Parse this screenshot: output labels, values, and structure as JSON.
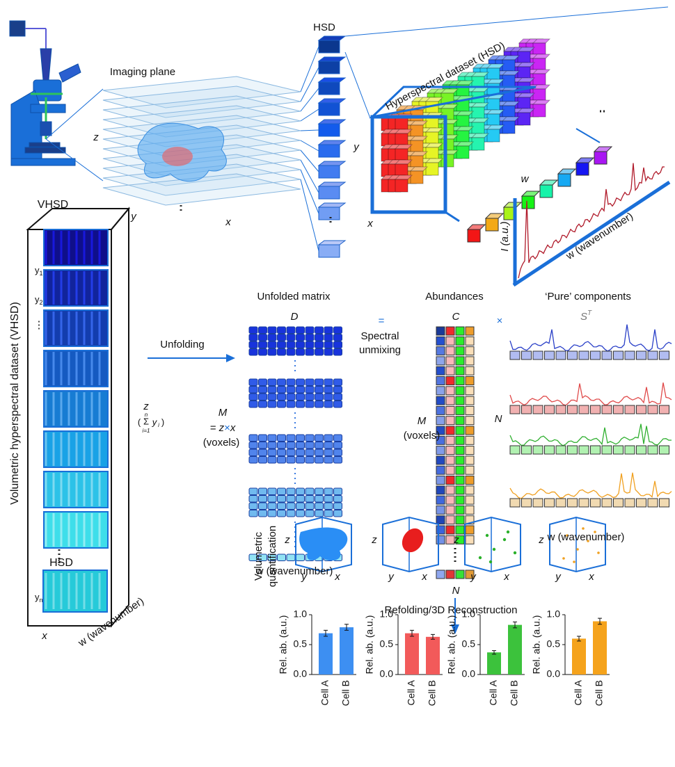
{
  "top": {
    "imaging_plane": "Imaging plane",
    "z": "z",
    "y": "y",
    "x": "x",
    "hsd": "HSD",
    "hsd_title": "Hyperspectral dataset (HSD)",
    "cube_y": "y",
    "cube_x": "x",
    "cube_w": "w",
    "intensity": "I (a.u.)",
    "wavenumber": "w (wavenumber)"
  },
  "vhsd": {
    "title": "VHSD",
    "label": "Volumetric hyperspectral dataset (VHSD)",
    "y1": {
      "base": "y",
      "sub": "1"
    },
    "y2": {
      "base": "y",
      "sub": "2"
    },
    "dots": "⋮",
    "yn": {
      "base": "y",
      "sub": "n"
    },
    "hsd": "HSD",
    "x": "x",
    "w": "w (wavenumber)",
    "z": "z",
    "sum": {
      "open": "(",
      "sigma": "Σ",
      "top": "n",
      "bottom": "i=1",
      "y": "y",
      "i": "i",
      "close": ")"
    }
  },
  "unfolding": "Unfolding",
  "unfolded": {
    "title": "Unfolded matrix",
    "D": "D",
    "M": "M",
    "eq": "= z",
    "times": "×",
    "x": "x",
    "voxels": "(voxels)",
    "w": "w (wavenumber)"
  },
  "unmixing": {
    "eq": "=",
    "label_1": "Spectral",
    "label_2": "unmixing"
  },
  "abundances": {
    "title": "Abundances",
    "C": "C",
    "M": "M",
    "voxels": "(voxels)",
    "N": "N",
    "times": "×"
  },
  "components": {
    "title": "‘Pure’ components",
    "S": "S",
    "T": "T",
    "N": "N",
    "w": "w (wavenumber)"
  },
  "refolding": "Refolding/3D Reconstruction",
  "quant": {
    "line_1": "Volumetric",
    "line_2": "quantification"
  },
  "cubes": [
    {
      "z": "z",
      "y": "y",
      "x": "x"
    },
    {
      "z": "z",
      "y": "y",
      "x": "x"
    },
    {
      "z": "z",
      "y": "y",
      "x": "x"
    },
    {
      "z": "z",
      "y": "y",
      "x": "x"
    }
  ],
  "chart_data": [
    {
      "type": "bar",
      "y_label": "Rel. ab. (a.u.)",
      "categories": [
        "Cell A",
        "Cell B"
      ],
      "values": [
        0.69,
        0.79
      ],
      "errors": [
        0.05,
        0.05
      ],
      "color": "#3d8ff2",
      "ylim": [
        0,
        1
      ],
      "yticks": [
        {
          "value": 0,
          "label": "0.0"
        },
        {
          "value": 0.5,
          "label": "0.5"
        },
        {
          "value": 1,
          "label": "1.0"
        }
      ]
    },
    {
      "type": "bar",
      "y_label": "Rel. ab. (a.u.)",
      "categories": [
        "Cell A",
        "Cell B"
      ],
      "values": [
        0.69,
        0.63
      ],
      "errors": [
        0.05,
        0.04
      ],
      "color": "#f25a5a",
      "ylim": [
        0,
        1
      ],
      "yticks": [
        {
          "value": 0,
          "label": "0.0"
        },
        {
          "value": 0.5,
          "label": "0.5"
        },
        {
          "value": 1,
          "label": "1.0"
        }
      ]
    },
    {
      "type": "bar",
      "y_label": "Rel. ab. (a.u.)",
      "categories": [
        "Cell A",
        "Cell B"
      ],
      "values": [
        0.37,
        0.83
      ],
      "errors": [
        0.03,
        0.05
      ],
      "color": "#3cc23c",
      "ylim": [
        0,
        1
      ],
      "yticks": [
        {
          "value": 0,
          "label": "0.0"
        },
        {
          "value": 0.5,
          "label": "0.5"
        },
        {
          "value": 1,
          "label": "1.0"
        }
      ]
    },
    {
      "type": "bar",
      "y_label": "Rel. ab. (a.u.)",
      "categories": [
        "Cell A",
        "Cell B"
      ],
      "values": [
        0.6,
        0.89
      ],
      "errors": [
        0.04,
        0.05
      ],
      "color": "#f5a31c",
      "ylim": [
        0,
        1
      ],
      "yticks": [
        {
          "value": 0,
          "label": "0.0"
        },
        {
          "value": 0.5,
          "label": "0.5"
        },
        {
          "value": 1,
          "label": "1.0"
        }
      ]
    }
  ]
}
